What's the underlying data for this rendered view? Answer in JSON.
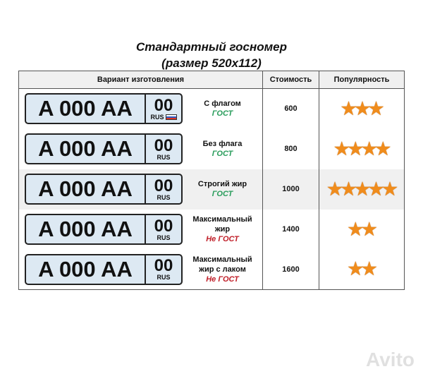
{
  "title_line1": "Стандартный госномер",
  "title_line2": "(размер 520x112)",
  "headers": [
    "Вариант изготовления",
    "Стоимость",
    "Популярность"
  ],
  "plate": {
    "main": "A 000 AA",
    "region": "00",
    "country": "RUS"
  },
  "colors": {
    "gost": "#2a9d5c",
    "not_gost": "#c0202a",
    "star": "#f08c1c"
  },
  "rows": [
    {
      "desc": [
        "С флагом"
      ],
      "status": "ГОСТ",
      "gost": true,
      "flag": true,
      "price": "600",
      "stars": 3
    },
    {
      "desc": [
        "Без флага"
      ],
      "status": "ГОСТ",
      "gost": true,
      "flag": false,
      "price": "800",
      "stars": 4
    },
    {
      "desc": [
        "Строгий жир"
      ],
      "status": "ГОСТ",
      "gost": true,
      "flag": false,
      "price": "1000",
      "stars": 5
    },
    {
      "desc": [
        "Максимальный",
        "жир"
      ],
      "status": "Не ГОСТ",
      "gost": false,
      "flag": false,
      "price": "1400",
      "stars": 2
    },
    {
      "desc": [
        "Максимальный",
        "жир с лаком"
      ],
      "status": "Не ГОСТ",
      "gost": false,
      "flag": false,
      "price": "1600",
      "stars": 2
    }
  ],
  "watermark": "Avito"
}
